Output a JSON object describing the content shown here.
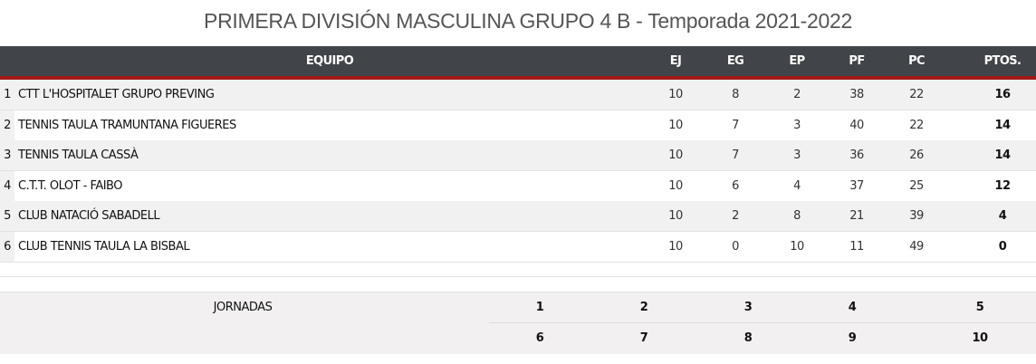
{
  "title": "PRIMERA DIVISIÓN MASCULINA GRUPO 4 B - Temporada 2021-2022",
  "headers": {
    "team": "EQUIPO",
    "ej": "EJ",
    "eg": "EG",
    "ep": "EP",
    "pf": "PF",
    "pc": "PC",
    "pts": "PTOS."
  },
  "rows": [
    {
      "rank": "1",
      "team": "CTT L'HOSPITALET GRUPO PREVING",
      "ej": "10",
      "eg": "8",
      "ep": "2",
      "pf": "38",
      "pc": "22",
      "pts": "16"
    },
    {
      "rank": "2",
      "team": "TENNIS TAULA TRAMUNTANA FIGUERES",
      "ej": "10",
      "eg": "7",
      "ep": "3",
      "pf": "40",
      "pc": "22",
      "pts": "14"
    },
    {
      "rank": "3",
      "team": "TENNIS TAULA CASSÀ",
      "ej": "10",
      "eg": "7",
      "ep": "3",
      "pf": "36",
      "pc": "26",
      "pts": "14"
    },
    {
      "rank": "4",
      "team": "C.T.T. OLOT - FAIBO",
      "ej": "10",
      "eg": "6",
      "ep": "4",
      "pf": "37",
      "pc": "25",
      "pts": "12"
    },
    {
      "rank": "5",
      "team": "CLUB NATACIÓ SABADELL",
      "ej": "10",
      "eg": "2",
      "ep": "8",
      "pf": "21",
      "pc": "39",
      "pts": "4"
    },
    {
      "rank": "6",
      "team": "CLUB TENNIS TAULA LA BISBAL",
      "ej": "10",
      "eg": "0",
      "ep": "10",
      "pf": "11",
      "pc": "49",
      "pts": "0"
    }
  ],
  "jornadas": {
    "label": "JORNADAS",
    "items": [
      "1",
      "2",
      "3",
      "4",
      "5",
      "6",
      "7",
      "8",
      "9",
      "10"
    ]
  },
  "colors": {
    "header_bg": "#414549",
    "accent": "#a31818"
  }
}
